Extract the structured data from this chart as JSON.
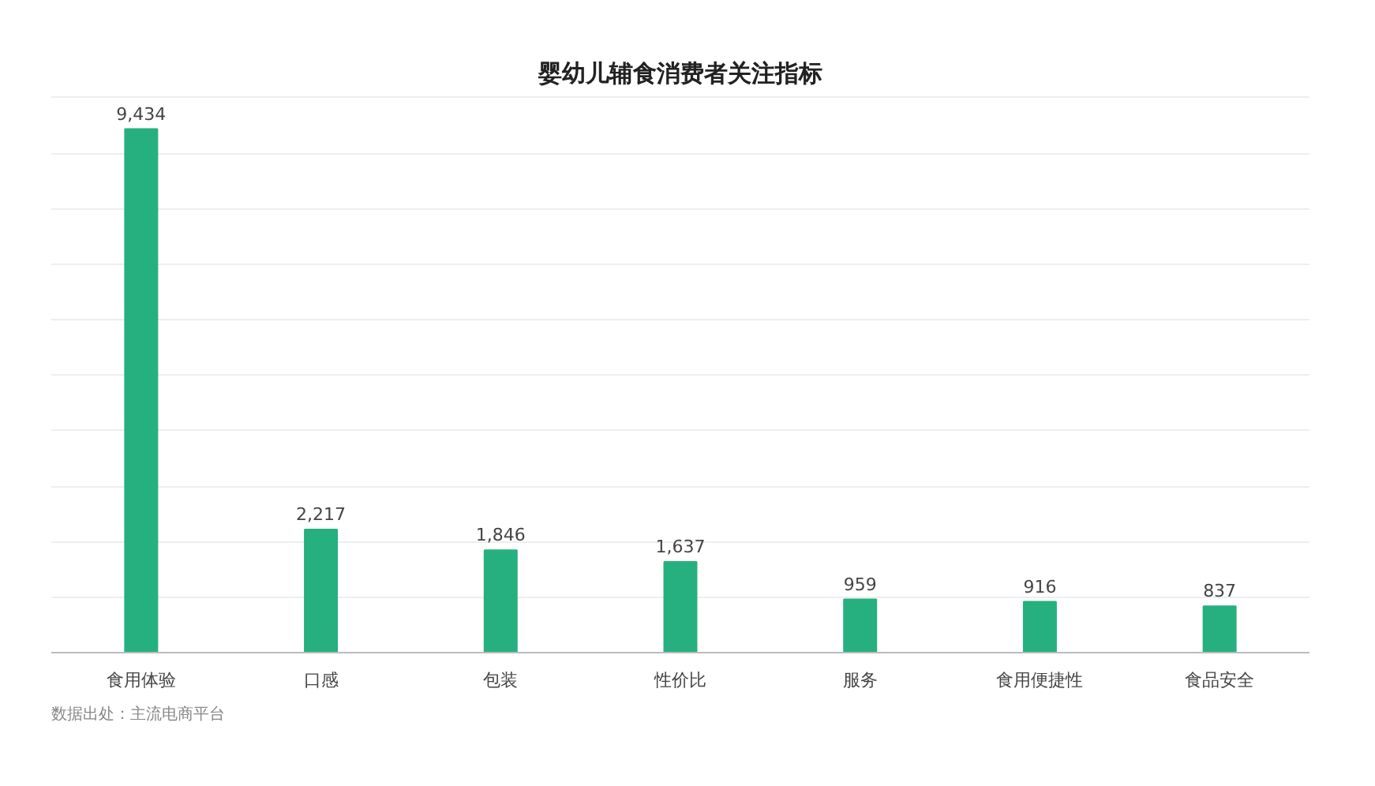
{
  "chart_data": {
    "type": "bar",
    "title": "婴幼儿辅食消费者关注指标",
    "categories": [
      "食用体验",
      "口感",
      "包装",
      "性价比",
      "服务",
      "食用便捷性",
      "食品安全"
    ],
    "values": [
      9434,
      2217,
      1846,
      1637,
      959,
      916,
      837
    ],
    "value_labels": [
      "9,434",
      "2,217",
      "1,846",
      "1,637",
      "959",
      "916",
      "837"
    ],
    "color": "#27b07f",
    "yticks": [
      {
        "value": 0,
        "label": null
      },
      {
        "value": 1000,
        "label": null
      },
      {
        "value": 2000,
        "label": null
      },
      {
        "value": 3000,
        "label": null
      },
      {
        "value": 4000,
        "label": null
      },
      {
        "value": 5000,
        "label": null
      },
      {
        "value": 6000,
        "label": null
      },
      {
        "value": 7000,
        "label": null
      },
      {
        "value": 8000,
        "label": null
      },
      {
        "value": 9000,
        "label": null
      },
      {
        "value": 10000,
        "label": null
      }
    ],
    "grid": "y",
    "tick_labels": "x",
    "annotations": [
      "数据出处：主流电商平台"
    ]
  }
}
